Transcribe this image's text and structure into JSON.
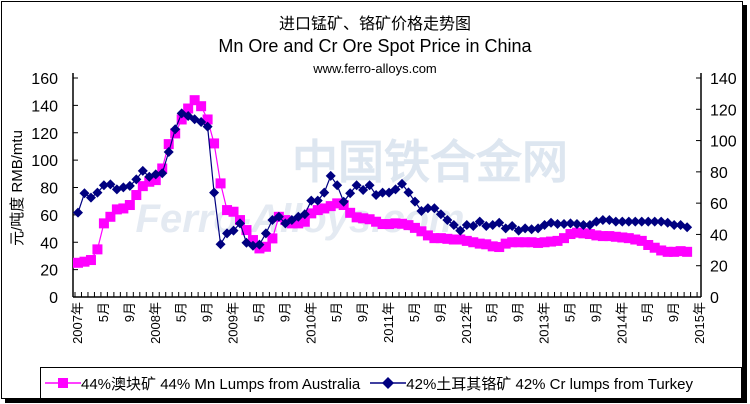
{
  "chart_data": {
    "type": "line",
    "title": "进口锰矿、铬矿价格走势图",
    "subtitle": "Mn Ore and Cr Ore Spot Price in China",
    "source": "www.ferro-alloys.com",
    "watermark": "中国铁合金网 Ferro-Alloys.com",
    "ylabel": "元/吨度 RMB/mtu",
    "ylim_left": [
      0,
      160
    ],
    "ylim_right": [
      0,
      140
    ],
    "yticks_left": [
      "0",
      "20",
      "40",
      "60",
      "80",
      "100",
      "120",
      "140",
      "160"
    ],
    "yticks_right": [
      "0",
      "20",
      "40",
      "60",
      "80",
      "100",
      "120",
      "140"
    ],
    "x_start": "2007-01",
    "x_end": "2014-11",
    "xtick_labels": [
      "2007年",
      "5月",
      "9月",
      "2008年",
      "5月",
      "9月",
      "2009年",
      "5月",
      "9月",
      "2010年",
      "5月",
      "9月",
      "2011年",
      "5月",
      "9月",
      "2012年",
      "5月",
      "9月",
      "2013年",
      "5月",
      "9月",
      "2014年",
      "5月",
      "9月",
      "2015年"
    ],
    "legend_position": "bottom",
    "series": [
      {
        "name": "44%澳块矿 44% Mn Lumps from Australia",
        "axis": "left",
        "color": "#FF00FF",
        "marker": "square",
        "values": [
          25,
          25.8,
          27,
          34.8,
          53.8,
          58.6,
          64,
          64.7,
          67.2,
          74.5,
          81,
          84.2,
          85.4,
          93.9,
          111.7,
          119.5,
          129.7,
          137.7,
          143.8,
          139.4,
          129.7,
          112.2,
          83,
          63.5,
          62.3,
          56.2,
          48.9,
          41.6,
          35.5,
          36.7,
          42.8,
          58.6,
          56.2,
          53.8,
          53.8,
          55,
          61.1,
          63.5,
          64.7,
          66.4,
          68.4,
          67.2,
          61.5,
          58.2,
          57.5,
          56.8,
          55,
          53.3,
          53.3,
          53.8,
          53.5,
          52.5,
          50.5,
          48,
          45,
          43,
          43,
          42.5,
          42,
          42,
          41,
          40,
          39,
          38.5,
          37,
          36.5,
          39,
          40,
          40,
          40,
          40,
          39.5,
          40,
          40.5,
          41,
          43,
          46,
          47,
          46.5,
          46,
          45,
          44.5,
          44.5,
          44,
          43.5,
          43,
          42,
          41,
          38,
          36,
          34,
          33,
          33,
          33.5,
          33
        ]
      },
      {
        "name": "42%土耳其铬矿 42% Cr lumps from Turkey",
        "axis": "right",
        "color": "#000080",
        "marker": "diamond",
        "values": [
          53.9,
          66.3,
          63.5,
          66.7,
          71.4,
          72,
          68.8,
          70.1,
          71,
          75.2,
          80.6,
          76.9,
          78.4,
          79.1,
          92.7,
          107.2,
          117.4,
          115.7,
          113.6,
          111.9,
          108.9,
          66.7,
          33.7,
          40.7,
          42.4,
          47.1,
          34.7,
          32.8,
          33.5,
          40.7,
          49.2,
          51.3,
          47.1,
          49.2,
          51.3,
          52.9,
          61.6,
          61.6,
          66.7,
          77.4,
          71.4,
          60.9,
          66.3,
          71.4,
          68.4,
          71.4,
          65.2,
          66.7,
          66.7,
          68.8,
          72.3,
          66.9,
          61,
          55,
          56.7,
          56.7,
          52.9,
          49.2,
          46,
          42.4,
          46,
          45.4,
          48.2,
          45.4,
          46,
          47.5,
          43.9,
          45.4,
          42.4,
          43.9,
          43.3,
          43.9,
          46,
          47.5,
          46.7,
          46.7,
          47.1,
          46.7,
          46,
          46,
          48.2,
          49.2,
          49.2,
          48.2,
          48.2,
          48.2,
          48.2,
          48.2,
          48.2,
          48.2,
          48.2,
          47.5,
          46,
          46,
          44.6
        ]
      }
    ]
  }
}
